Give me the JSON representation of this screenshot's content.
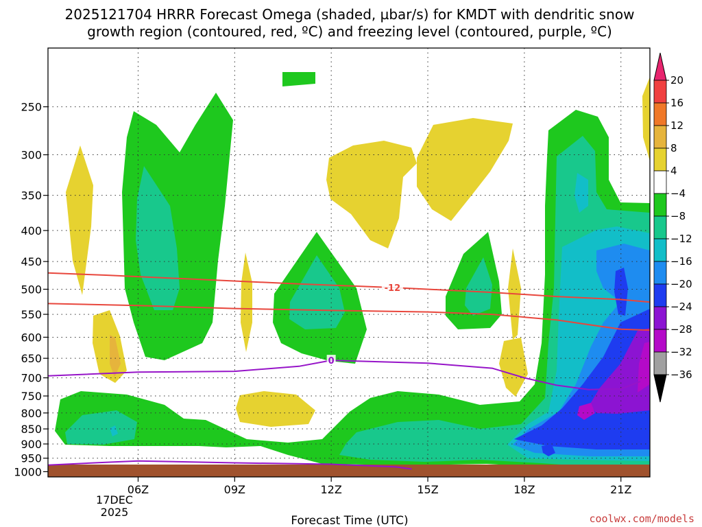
{
  "title_line1": "2025121704 HRRR Forecast Omega (shaded, µbar/s) for KMDT with dendritic snow",
  "title_line2": "growth region (contoured, red, ºC) and freezing level (contoured, purple, ºC)",
  "xlabel": "Forecast Time (UTC)",
  "credit": "coolwx.com/models",
  "date_label": {
    "day": "17DEC",
    "year": "2025"
  },
  "chart_data": {
    "type": "heatmap",
    "title": "2025121704 HRRR Forecast Omega (shaded, µbar/s) for KMDT with dendritic snow growth region (contoured, red, ºC) and freezing level (contoured, purple, ºC)",
    "xlabel": "Forecast Time (UTC)",
    "ylabel": "",
    "y_scale": "log-pressure",
    "x_range_hours_utc": [
      3.2,
      21.9
    ],
    "y_range_hpa": [
      200,
      1020
    ],
    "grid": true,
    "x_ticks": [
      {
        "hour": 6,
        "label": "06Z"
      },
      {
        "hour": 9,
        "label": "09Z"
      },
      {
        "hour": 12,
        "label": "12Z"
      },
      {
        "hour": 15,
        "label": "15Z"
      },
      {
        "hour": 18,
        "label": "18Z"
      },
      {
        "hour": 21,
        "label": "21Z"
      }
    ],
    "y_ticks": [
      250,
      300,
      350,
      400,
      450,
      500,
      550,
      600,
      650,
      700,
      750,
      800,
      850,
      900,
      950,
      1000
    ],
    "colorbar": {
      "labels": [
        "20",
        "16",
        "12",
        "8",
        "4",
        "−4",
        "−8",
        "−12",
        "−16",
        "−20",
        "−24",
        "−28",
        "−32",
        "−36"
      ],
      "colors": [
        "#e8246e",
        "#f04040",
        "#f07828",
        "#e6b43c",
        "#e6d230",
        "#ffffff",
        "#1ec81e",
        "#18c88c",
        "#12bec8",
        "#1e8cf0",
        "#1e3cf0",
        "#8c14d2",
        "#b40ac8",
        "#a0a0a0",
        "#000000"
      ]
    },
    "contours": [
      {
        "name": "-12",
        "color": "#e8463c",
        "label_at_hour": 13.9,
        "points": [
          [
            3.2,
            470
          ],
          [
            5,
            474
          ],
          [
            8,
            482
          ],
          [
            11,
            490
          ],
          [
            14,
            497
          ],
          [
            17,
            506
          ],
          [
            19,
            514
          ],
          [
            21,
            520
          ],
          [
            21.9,
            525
          ]
        ]
      },
      {
        "name": "",
        "color": "#e8463c",
        "points": [
          [
            3.2,
            528
          ],
          [
            6,
            532
          ],
          [
            9,
            538
          ],
          [
            12,
            542
          ],
          [
            15,
            545
          ],
          [
            17,
            550
          ],
          [
            19,
            562
          ],
          [
            20,
            572
          ],
          [
            21,
            582
          ],
          [
            21.9,
            584
          ]
        ]
      },
      {
        "name": "0",
        "color": "#9614c8",
        "label_at_hour": 12,
        "points": [
          [
            3.2,
            695
          ],
          [
            6,
            685
          ],
          [
            9,
            683
          ],
          [
            11,
            670
          ],
          [
            12,
            655
          ],
          [
            15,
            662
          ],
          [
            17,
            675
          ],
          [
            18,
            700
          ],
          [
            19,
            720
          ],
          [
            20,
            732
          ],
          [
            21,
            730
          ],
          [
            21.6,
            710
          ]
        ]
      },
      {
        "name": "",
        "color": "#9614c8",
        "points": [
          [
            3.2,
            975
          ],
          [
            5,
            965
          ],
          [
            6,
            960
          ],
          [
            9,
            967
          ],
          [
            12,
            972
          ],
          [
            14,
            982
          ],
          [
            14.5,
            990
          ]
        ]
      }
    ]
  }
}
